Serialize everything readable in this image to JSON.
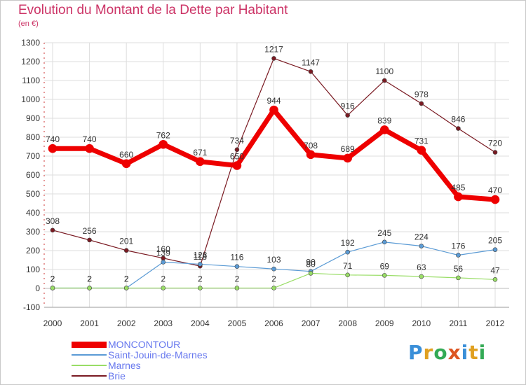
{
  "title": "Evolution du Montant de la Dette par Habitant",
  "subtitle": "(en €)",
  "logo": {
    "text": "Proxiti",
    "colors": [
      "#3a8fd8",
      "#e0a020",
      "#33aa55",
      "#dd5522",
      "#3a8fd8",
      "#e0a020",
      "#33aa55"
    ]
  },
  "chart_data": {
    "type": "line",
    "x": [
      "2000",
      "2001",
      "2002",
      "2003",
      "2004",
      "2005",
      "2006",
      "2007",
      "2008",
      "2009",
      "2010",
      "2011",
      "2012"
    ],
    "ylim": [
      -100,
      1300
    ],
    "yticks": [
      "-100",
      "0",
      "100",
      "200",
      "300",
      "400",
      "500",
      "600",
      "700",
      "800",
      "900",
      "1000",
      "1100",
      "1200",
      "1300"
    ],
    "grid": true,
    "legend_position": "bottom-left",
    "series": [
      {
        "name": "Brie",
        "color": "#7a1a22",
        "values": [
          308,
          256,
          201,
          160,
          118,
          734,
          1217,
          1147,
          916,
          1100,
          978,
          846,
          720
        ],
        "labels": [
          "308",
          "256",
          "201",
          "160",
          "118",
          "734",
          "1217",
          "1147",
          "916",
          "1100",
          "978",
          "846",
          "720"
        ]
      },
      {
        "name": "Saint-Jouin-de-Marnes",
        "color": "#5b9bd5",
        "values": [
          2,
          2,
          2,
          139,
          128,
          116,
          103,
          90,
          192,
          245,
          224,
          176,
          205
        ],
        "labels": [
          "2",
          "2",
          "2",
          "139",
          "128",
          "116",
          "103",
          "90",
          "192",
          "245",
          "224",
          "176",
          "205"
        ]
      },
      {
        "name": "Marnes",
        "color": "#99dd66",
        "values": [
          2,
          2,
          2,
          2,
          2,
          2,
          2,
          80,
          71,
          69,
          63,
          56,
          47
        ],
        "labels": [
          "2",
          "2",
          "2",
          "2",
          "2",
          "2",
          "2",
          "80",
          "71",
          "69",
          "63",
          "56",
          "47"
        ]
      },
      {
        "name": "MONCONTOUR",
        "color": "#ee0000",
        "values": [
          740,
          740,
          660,
          762,
          671,
          650,
          944,
          708,
          689,
          839,
          731,
          485,
          470
        ],
        "labels": [
          "740",
          "740",
          "660",
          "762",
          "671",
          "650",
          "944",
          "708",
          "689",
          "839",
          "731",
          "485",
          "470"
        ]
      }
    ]
  },
  "legend": [
    {
      "label": "MONCONTOUR",
      "color": "#ee0000"
    },
    {
      "label": "Saint-Jouin-de-Marnes",
      "color": "#5b9bd5"
    },
    {
      "label": "Marnes",
      "color": "#99dd66"
    },
    {
      "label": "Brie",
      "color": "#7a1a22"
    }
  ]
}
